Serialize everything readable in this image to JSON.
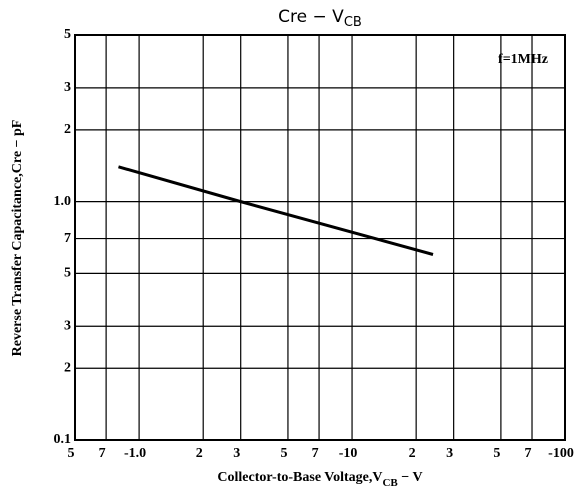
{
  "chart_data": {
    "type": "line",
    "title": {
      "text": "Cre  −  V",
      "sub": "CB"
    },
    "x_label": {
      "text": "Collector-to-Base Voltage,V",
      "sub": "CB",
      "after": " − V"
    },
    "y_label": "Reverse Transfer Capacitance,Cre − pF",
    "annotation": "f=1MHz",
    "xscale": "log",
    "yscale": "log",
    "grid": true,
    "xlim": [
      0.5,
      100
    ],
    "ylim": [
      0.1,
      5
    ],
    "xticks": [
      {
        "value": 0.5,
        "label": "5"
      },
      {
        "value": 0.7,
        "label": "7"
      },
      {
        "value": 1,
        "label": "-1.0"
      },
      2,
      3,
      5,
      7,
      {
        "value": 10,
        "label": "-10"
      },
      {
        "value": 20,
        "label": "2"
      },
      {
        "value": 30,
        "label": "3"
      },
      {
        "value": 50,
        "label": "5"
      },
      {
        "value": 70,
        "label": "7"
      },
      {
        "value": 100,
        "label": "-100"
      }
    ],
    "yticks": [
      0.1,
      {
        "value": 0.2,
        "label": "2"
      },
      {
        "value": 0.3,
        "label": "3"
      },
      {
        "value": 0.5,
        "label": "5"
      },
      {
        "value": 0.7,
        "label": "7"
      },
      {
        "value": 1,
        "label": "1.0"
      },
      2,
      3,
      5
    ],
    "x": [
      0.8,
      3,
      24
    ],
    "series": [
      {
        "color": "#000000",
        "values": [
          1.4,
          1.0,
          0.6
        ]
      }
    ]
  }
}
